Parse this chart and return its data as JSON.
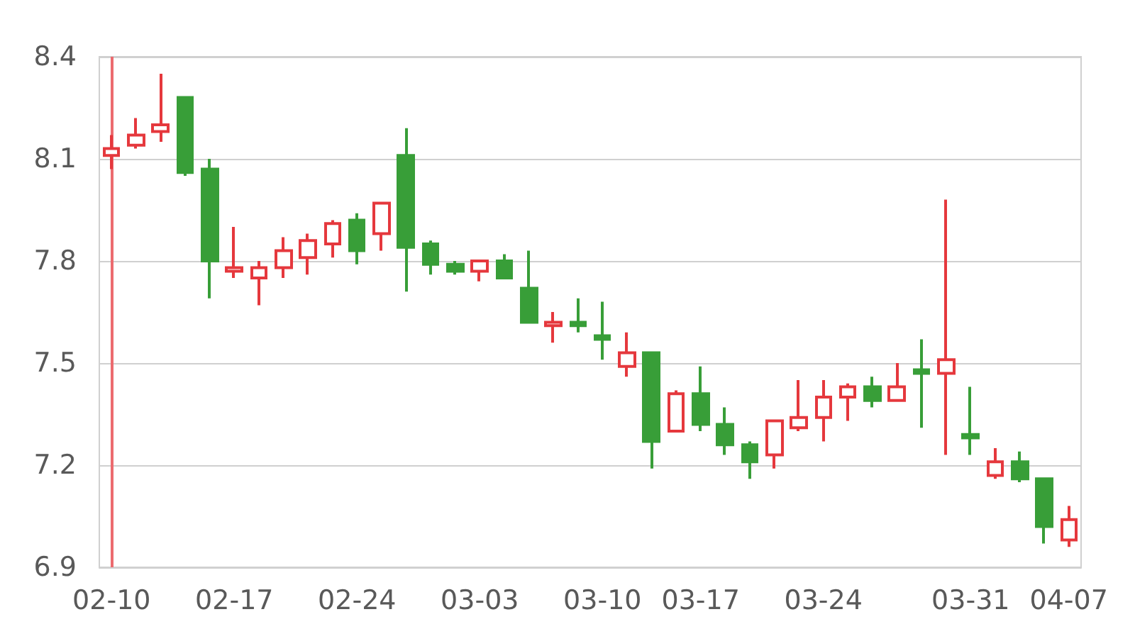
{
  "chart_data": {
    "type": "candlestick",
    "categories": [
      "02-10",
      null,
      null,
      null,
      null,
      "02-17",
      null,
      null,
      null,
      null,
      "02-24",
      null,
      null,
      null,
      null,
      "03-03",
      null,
      null,
      null,
      null,
      "03-10",
      null,
      null,
      null,
      "03-17",
      null,
      null,
      null,
      null,
      "03-24",
      null,
      null,
      null,
      null,
      null,
      "03-31",
      null,
      null,
      null,
      "04-07"
    ],
    "ohlc": [
      [
        8.11,
        8.17,
        8.07,
        8.13
      ],
      [
        8.14,
        8.22,
        8.13,
        8.17
      ],
      [
        8.18,
        8.35,
        8.15,
        8.2
      ],
      [
        8.28,
        8.28,
        8.05,
        8.06
      ],
      [
        8.07,
        8.1,
        7.69,
        7.8
      ],
      [
        7.77,
        7.9,
        7.75,
        7.78
      ],
      [
        7.75,
        7.8,
        7.67,
        7.78
      ],
      [
        7.78,
        7.87,
        7.75,
        7.83
      ],
      [
        7.81,
        7.88,
        7.76,
        7.86
      ],
      [
        7.85,
        7.92,
        7.81,
        7.91
      ],
      [
        7.92,
        7.94,
        7.79,
        7.83
      ],
      [
        7.88,
        7.97,
        7.83,
        7.97
      ],
      [
        8.11,
        8.19,
        7.71,
        7.84
      ],
      [
        7.85,
        7.86,
        7.76,
        7.79
      ],
      [
        7.79,
        7.8,
        7.76,
        7.77
      ],
      [
        7.77,
        7.8,
        7.74,
        7.8
      ],
      [
        7.8,
        7.82,
        7.75,
        7.75
      ],
      [
        7.72,
        7.83,
        7.62,
        7.62
      ],
      [
        7.61,
        7.65,
        7.56,
        7.62
      ],
      [
        7.62,
        7.69,
        7.59,
        7.61
      ],
      [
        7.58,
        7.68,
        7.51,
        7.57
      ],
      [
        7.49,
        7.59,
        7.46,
        7.53
      ],
      [
        7.53,
        7.53,
        7.19,
        7.27
      ],
      [
        7.3,
        7.42,
        7.3,
        7.41
      ],
      [
        7.41,
        7.49,
        7.3,
        7.32
      ],
      [
        7.32,
        7.37,
        7.23,
        7.26
      ],
      [
        7.26,
        7.27,
        7.16,
        7.21
      ],
      [
        7.23,
        7.33,
        7.19,
        7.33
      ],
      [
        7.31,
        7.45,
        7.3,
        7.34
      ],
      [
        7.34,
        7.45,
        7.27,
        7.4
      ],
      [
        7.4,
        7.44,
        7.33,
        7.43
      ],
      [
        7.43,
        7.46,
        7.37,
        7.39
      ],
      [
        7.39,
        7.5,
        7.39,
        7.43
      ],
      [
        7.48,
        7.57,
        7.31,
        7.47
      ],
      [
        7.47,
        7.98,
        7.23,
        7.51
      ],
      [
        7.29,
        7.43,
        7.23,
        7.28
      ],
      [
        7.17,
        7.25,
        7.16,
        7.21
      ],
      [
        7.21,
        7.24,
        7.15,
        7.16
      ],
      [
        7.16,
        7.16,
        6.97,
        7.02
      ],
      [
        6.98,
        7.08,
        6.96,
        7.04
      ]
    ],
    "colors": [
      "#e5383d",
      "#e5383d",
      "#e5383d",
      "#389e38",
      "#389e38",
      "#e5383d",
      "#e5383d",
      "#e5383d",
      "#e5383d",
      "#e5383d",
      "#389e38",
      "#e5383d",
      "#389e38",
      "#389e38",
      "#389e38",
      "#e5383d",
      "#389e38",
      "#389e38",
      "#e5383d",
      "#389e38",
      "#389e38",
      "#e5383d",
      "#389e38",
      "#e5383d",
      "#389e38",
      "#389e38",
      "#389e38",
      "#e5383d",
      "#e5383d",
      "#e5383d",
      "#e5383d",
      "#389e38",
      "#e5383d",
      "#389e38",
      "#e5383d",
      "#389e38",
      "#e5383d",
      "#389e38",
      "#389e38",
      "#e5383d"
    ],
    "ref_lines": [
      {
        "axis": "x",
        "value": "02-10",
        "color": "#ec6b6f"
      }
    ],
    "ylim": [
      6.9,
      8.4
    ],
    "yticks": [
      6.9,
      7.2,
      7.5,
      7.8,
      8.1,
      8.4
    ],
    "grid": "y"
  }
}
